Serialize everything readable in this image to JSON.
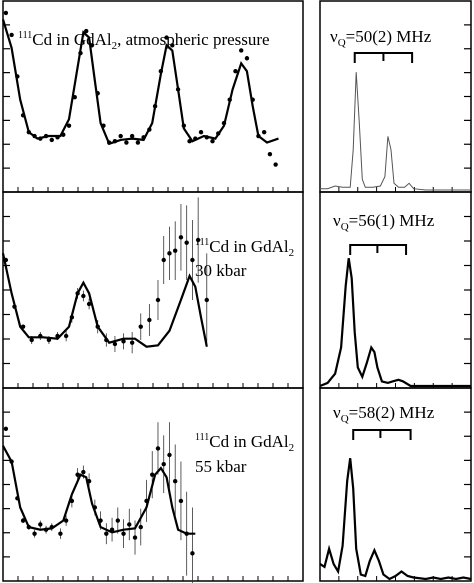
{
  "chart_data": [
    {
      "type": "scatter",
      "panel": "time-domain-1",
      "label": {
        "iso": "111",
        "pre": "Cd in GdAl",
        "sub": "2",
        "post": ", atmospheric pressure"
      },
      "ylim": [
        -0.35,
        1.0
      ],
      "xlim": [
        0,
        100
      ],
      "points": [
        {
          "x": 1,
          "y": 0.97
        },
        {
          "x": 3,
          "y": 0.8
        },
        {
          "x": 5,
          "y": 0.48
        },
        {
          "x": 7,
          "y": 0.18
        },
        {
          "x": 9,
          "y": 0.05
        },
        {
          "x": 11,
          "y": 0.02
        },
        {
          "x": 13,
          "y": 0.0
        },
        {
          "x": 15,
          "y": 0.02
        },
        {
          "x": 17,
          "y": -0.01
        },
        {
          "x": 19,
          "y": 0.01
        },
        {
          "x": 21,
          "y": 0.03
        },
        {
          "x": 23,
          "y": 0.1
        },
        {
          "x": 25,
          "y": 0.32
        },
        {
          "x": 27,
          "y": 0.66
        },
        {
          "x": 29,
          "y": 0.83
        },
        {
          "x": 31,
          "y": 0.72
        },
        {
          "x": 33,
          "y": 0.35
        },
        {
          "x": 35,
          "y": 0.1
        },
        {
          "x": 37,
          "y": -0.03
        },
        {
          "x": 39,
          "y": -0.02
        },
        {
          "x": 41,
          "y": 0.02
        },
        {
          "x": 43,
          "y": -0.03
        },
        {
          "x": 45,
          "y": 0.02
        },
        {
          "x": 47,
          "y": -0.03
        },
        {
          "x": 49,
          "y": 0.01
        },
        {
          "x": 51,
          "y": 0.07
        },
        {
          "x": 53,
          "y": 0.25
        },
        {
          "x": 55,
          "y": 0.52
        },
        {
          "x": 57,
          "y": 0.78
        },
        {
          "x": 59,
          "y": 0.72
        },
        {
          "x": 61,
          "y": 0.38
        },
        {
          "x": 63,
          "y": 0.1
        },
        {
          "x": 65,
          "y": -0.02
        },
        {
          "x": 67,
          "y": 0.0
        },
        {
          "x": 69,
          "y": 0.05
        },
        {
          "x": 71,
          "y": 0.01
        },
        {
          "x": 73,
          "y": -0.02
        },
        {
          "x": 75,
          "y": 0.04
        },
        {
          "x": 77,
          "y": 0.12
        },
        {
          "x": 79,
          "y": 0.3
        },
        {
          "x": 81,
          "y": 0.52
        },
        {
          "x": 83,
          "y": 0.68
        },
        {
          "x": 85,
          "y": 0.62
        },
        {
          "x": 87,
          "y": 0.3
        },
        {
          "x": 89,
          "y": 0.02
        },
        {
          "x": 91,
          "y": 0.05
        },
        {
          "x": 93,
          "y": -0.12
        },
        {
          "x": 95,
          "y": -0.2
        }
      ],
      "fit": [
        {
          "x": 0,
          "y": 0.92
        },
        {
          "x": 3,
          "y": 0.7
        },
        {
          "x": 6,
          "y": 0.3
        },
        {
          "x": 9,
          "y": 0.05
        },
        {
          "x": 12,
          "y": 0.0
        },
        {
          "x": 16,
          "y": 0.02
        },
        {
          "x": 20,
          "y": 0.02
        },
        {
          "x": 23,
          "y": 0.15
        },
        {
          "x": 26,
          "y": 0.55
        },
        {
          "x": 28,
          "y": 0.82
        },
        {
          "x": 30,
          "y": 0.78
        },
        {
          "x": 32,
          "y": 0.45
        },
        {
          "x": 34,
          "y": 0.12
        },
        {
          "x": 37,
          "y": -0.04
        },
        {
          "x": 41,
          "y": -0.01
        },
        {
          "x": 45,
          "y": 0.0
        },
        {
          "x": 49,
          "y": -0.01
        },
        {
          "x": 52,
          "y": 0.12
        },
        {
          "x": 55,
          "y": 0.5
        },
        {
          "x": 57,
          "y": 0.72
        },
        {
          "x": 59,
          "y": 0.68
        },
        {
          "x": 61,
          "y": 0.38
        },
        {
          "x": 63,
          "y": 0.08
        },
        {
          "x": 66,
          "y": -0.02
        },
        {
          "x": 70,
          "y": 0.02
        },
        {
          "x": 74,
          "y": 0.0
        },
        {
          "x": 77,
          "y": 0.1
        },
        {
          "x": 80,
          "y": 0.38
        },
        {
          "x": 83,
          "y": 0.58
        },
        {
          "x": 85,
          "y": 0.52
        },
        {
          "x": 87,
          "y": 0.25
        },
        {
          "x": 89,
          "y": 0.02
        },
        {
          "x": 92,
          "y": -0.03
        },
        {
          "x": 96,
          "y": 0.0
        }
      ]
    },
    {
      "type": "scatter",
      "panel": "time-domain-2",
      "label": {
        "iso": "111",
        "pre": "Cd in GdAl",
        "sub": "2",
        "line2": "30 kbar"
      },
      "ylim": [
        -0.35,
        1.0
      ],
      "xlim": [
        0,
        100
      ],
      "points": [
        {
          "x": 1,
          "y": 0.55,
          "e": 0
        },
        {
          "x": 4,
          "y": 0.2,
          "e": 0
        },
        {
          "x": 7,
          "y": 0.05,
          "e": 0
        },
        {
          "x": 10,
          "y": -0.05,
          "e": 0.03
        },
        {
          "x": 13,
          "y": -0.02,
          "e": 0.03
        },
        {
          "x": 16,
          "y": -0.05,
          "e": 0.03
        },
        {
          "x": 19,
          "y": -0.02,
          "e": 0.03
        },
        {
          "x": 22,
          "y": -0.02,
          "e": 0.04
        },
        {
          "x": 24,
          "y": 0.12,
          "e": 0.04
        },
        {
          "x": 26,
          "y": 0.3,
          "e": 0.04
        },
        {
          "x": 28,
          "y": 0.28,
          "e": 0.04
        },
        {
          "x": 30,
          "y": 0.22,
          "e": 0.04
        },
        {
          "x": 33,
          "y": 0.05,
          "e": 0.05
        },
        {
          "x": 36,
          "y": -0.05,
          "e": 0.05
        },
        {
          "x": 39,
          "y": -0.08,
          "e": 0.06
        },
        {
          "x": 42,
          "y": -0.06,
          "e": 0.06
        },
        {
          "x": 45,
          "y": -0.07,
          "e": 0.08
        },
        {
          "x": 48,
          "y": 0.05,
          "e": 0.1
        },
        {
          "x": 51,
          "y": 0.1,
          "e": 0.12
        },
        {
          "x": 54,
          "y": 0.25,
          "e": 0.15
        },
        {
          "x": 56,
          "y": 0.55,
          "e": 0.18
        },
        {
          "x": 58,
          "y": 0.6,
          "e": 0.2
        },
        {
          "x": 60,
          "y": 0.62,
          "e": 0.22
        },
        {
          "x": 62,
          "y": 0.72,
          "e": 0.25
        },
        {
          "x": 64,
          "y": 0.68,
          "e": 0.28
        },
        {
          "x": 66,
          "y": 0.55,
          "e": 0.3
        },
        {
          "x": 68,
          "y": 0.7,
          "e": 0.32
        },
        {
          "x": 71,
          "y": 0.25,
          "e": 0.35
        }
      ],
      "fit": [
        {
          "x": 0,
          "y": 0.6
        },
        {
          "x": 3,
          "y": 0.3
        },
        {
          "x": 6,
          "y": 0.05
        },
        {
          "x": 9,
          "y": -0.03
        },
        {
          "x": 14,
          "y": -0.03
        },
        {
          "x": 19,
          "y": -0.04
        },
        {
          "x": 23,
          "y": 0.05
        },
        {
          "x": 26,
          "y": 0.3
        },
        {
          "x": 28,
          "y": 0.38
        },
        {
          "x": 30,
          "y": 0.3
        },
        {
          "x": 33,
          "y": 0.05
        },
        {
          "x": 37,
          "y": -0.07
        },
        {
          "x": 42,
          "y": -0.04
        },
        {
          "x": 46,
          "y": -0.04
        },
        {
          "x": 50,
          "y": -0.1
        },
        {
          "x": 54,
          "y": -0.09
        },
        {
          "x": 58,
          "y": 0.02
        },
        {
          "x": 62,
          "y": 0.25
        },
        {
          "x": 65,
          "y": 0.43
        },
        {
          "x": 67,
          "y": 0.35
        },
        {
          "x": 69,
          "y": 0.12
        },
        {
          "x": 71,
          "y": -0.1
        }
      ]
    },
    {
      "type": "scatter",
      "panel": "time-domain-3",
      "label": {
        "iso": "111",
        "pre": "Cd in GdAl",
        "sub": "2",
        "line2": "55 kbar"
      },
      "ylim": [
        -0.35,
        1.0
      ],
      "xlim": [
        0,
        100
      ],
      "points": [
        {
          "x": 1,
          "y": 0.75,
          "e": 0
        },
        {
          "x": 3,
          "y": 0.5,
          "e": 0
        },
        {
          "x": 5,
          "y": 0.22,
          "e": 0
        },
        {
          "x": 7,
          "y": 0.05,
          "e": 0.02
        },
        {
          "x": 9,
          "y": 0.0,
          "e": 0.02
        },
        {
          "x": 11,
          "y": -0.05,
          "e": 0.03
        },
        {
          "x": 13,
          "y": 0.02,
          "e": 0.03
        },
        {
          "x": 15,
          "y": -0.02,
          "e": 0.03
        },
        {
          "x": 17,
          "y": 0.0,
          "e": 0.03
        },
        {
          "x": 20,
          "y": -0.05,
          "e": 0.04
        },
        {
          "x": 22,
          "y": 0.05,
          "e": 0.04
        },
        {
          "x": 24,
          "y": 0.2,
          "e": 0.05
        },
        {
          "x": 26,
          "y": 0.4,
          "e": 0.05
        },
        {
          "x": 28,
          "y": 0.42,
          "e": 0.05
        },
        {
          "x": 30,
          "y": 0.35,
          "e": 0.06
        },
        {
          "x": 32,
          "y": 0.15,
          "e": 0.06
        },
        {
          "x": 34,
          "y": 0.05,
          "e": 0.07
        },
        {
          "x": 36,
          "y": -0.05,
          "e": 0.08
        },
        {
          "x": 38,
          "y": -0.02,
          "e": 0.09
        },
        {
          "x": 40,
          "y": 0.05,
          "e": 0.1
        },
        {
          "x": 42,
          "y": -0.05,
          "e": 0.11
        },
        {
          "x": 44,
          "y": 0.02,
          "e": 0.12
        },
        {
          "x": 46,
          "y": -0.08,
          "e": 0.13
        },
        {
          "x": 48,
          "y": 0.0,
          "e": 0.14
        },
        {
          "x": 50,
          "y": 0.2,
          "e": 0.16
        },
        {
          "x": 52,
          "y": 0.4,
          "e": 0.18
        },
        {
          "x": 54,
          "y": 0.6,
          "e": 0.2
        },
        {
          "x": 56,
          "y": 0.48,
          "e": 0.22
        },
        {
          "x": 58,
          "y": 0.55,
          "e": 0.25
        },
        {
          "x": 60,
          "y": 0.35,
          "e": 0.28
        },
        {
          "x": 62,
          "y": 0.2,
          "e": 0.3
        },
        {
          "x": 64,
          "y": -0.05,
          "e": 0.32
        },
        {
          "x": 66,
          "y": -0.2,
          "e": 0.35
        }
      ],
      "fit": [
        {
          "x": 0,
          "y": 0.62
        },
        {
          "x": 3,
          "y": 0.5
        },
        {
          "x": 6,
          "y": 0.15
        },
        {
          "x": 9,
          "y": 0.0
        },
        {
          "x": 13,
          "y": -0.02
        },
        {
          "x": 17,
          "y": -0.01
        },
        {
          "x": 21,
          "y": 0.05
        },
        {
          "x": 24,
          "y": 0.25
        },
        {
          "x": 27,
          "y": 0.4
        },
        {
          "x": 29,
          "y": 0.38
        },
        {
          "x": 31,
          "y": 0.18
        },
        {
          "x": 34,
          "y": 0.0
        },
        {
          "x": 38,
          "y": -0.04
        },
        {
          "x": 42,
          "y": -0.02
        },
        {
          "x": 46,
          "y": -0.01
        },
        {
          "x": 50,
          "y": 0.15
        },
        {
          "x": 53,
          "y": 0.4
        },
        {
          "x": 55,
          "y": 0.45
        },
        {
          "x": 57,
          "y": 0.38
        },
        {
          "x": 59,
          "y": 0.15
        },
        {
          "x": 61,
          "y": -0.02
        },
        {
          "x": 64,
          "y": -0.05
        },
        {
          "x": 67,
          "y": -0.05
        }
      ]
    },
    {
      "type": "line",
      "panel": "frequency-domain-1",
      "label": {
        "nu": "ν",
        "sub": "Q",
        "post": "=50(2) MHz"
      },
      "ylim": [
        0,
        1.0
      ],
      "xlim": [
        0,
        100
      ],
      "style": "thin",
      "spectrum": [
        {
          "x": 0,
          "y": 0.01
        },
        {
          "x": 5,
          "y": 0.01
        },
        {
          "x": 10,
          "y": 0.03
        },
        {
          "x": 15,
          "y": 0.02
        },
        {
          "x": 20,
          "y": 0.02
        },
        {
          "x": 22,
          "y": 0.3
        },
        {
          "x": 24,
          "y": 0.88
        },
        {
          "x": 26,
          "y": 0.5
        },
        {
          "x": 28,
          "y": 0.08
        },
        {
          "x": 30,
          "y": 0.02
        },
        {
          "x": 35,
          "y": 0.02
        },
        {
          "x": 40,
          "y": 0.03
        },
        {
          "x": 43,
          "y": 0.1
        },
        {
          "x": 45,
          "y": 0.4
        },
        {
          "x": 47,
          "y": 0.3
        },
        {
          "x": 49,
          "y": 0.05
        },
        {
          "x": 52,
          "y": 0.02
        },
        {
          "x": 56,
          "y": 0.02
        },
        {
          "x": 59,
          "y": 0.05
        },
        {
          "x": 62,
          "y": 0.01
        },
        {
          "x": 70,
          "y": 0.0
        },
        {
          "x": 80,
          "y": 0.0
        },
        {
          "x": 90,
          "y": 0.0
        },
        {
          "x": 100,
          "y": 0.0
        }
      ],
      "bracket": {
        "x0": 23,
        "x1": 61,
        "ticks": [
          42
        ]
      }
    },
    {
      "type": "line",
      "panel": "frequency-domain-2",
      "label": {
        "nu": "ν",
        "sub": "Q",
        "post": "=56(1) MHz"
      },
      "ylim": [
        0,
        1.0
      ],
      "xlim": [
        0,
        100
      ],
      "style": "thick",
      "spectrum": [
        {
          "x": 0,
          "y": 0.0
        },
        {
          "x": 5,
          "y": 0.02
        },
        {
          "x": 10,
          "y": 0.08
        },
        {
          "x": 14,
          "y": 0.25
        },
        {
          "x": 17,
          "y": 0.65
        },
        {
          "x": 19,
          "y": 0.83
        },
        {
          "x": 21,
          "y": 0.7
        },
        {
          "x": 23,
          "y": 0.35
        },
        {
          "x": 25,
          "y": 0.12
        },
        {
          "x": 28,
          "y": 0.06
        },
        {
          "x": 31,
          "y": 0.15
        },
        {
          "x": 34,
          "y": 0.25
        },
        {
          "x": 36,
          "y": 0.22
        },
        {
          "x": 38,
          "y": 0.12
        },
        {
          "x": 41,
          "y": 0.03
        },
        {
          "x": 45,
          "y": 0.02
        },
        {
          "x": 48,
          "y": 0.03
        },
        {
          "x": 52,
          "y": 0.04
        },
        {
          "x": 55,
          "y": 0.03
        },
        {
          "x": 60,
          "y": 0.0
        },
        {
          "x": 70,
          "y": 0.0
        },
        {
          "x": 80,
          "y": 0.0
        },
        {
          "x": 90,
          "y": 0.0
        },
        {
          "x": 100,
          "y": 0.0
        }
      ],
      "bracket": {
        "x0": 20,
        "x1": 57,
        "ticks": [
          38
        ]
      }
    },
    {
      "type": "line",
      "panel": "frequency-domain-3",
      "label": {
        "nu": "ν",
        "sub": "Q",
        "post": "=58(2) MHz"
      },
      "ylim": [
        0,
        1.0
      ],
      "xlim": [
        0,
        100
      ],
      "style": "thick",
      "spectrum": [
        {
          "x": 0,
          "y": 0.1
        },
        {
          "x": 3,
          "y": 0.08
        },
        {
          "x": 6,
          "y": 0.2
        },
        {
          "x": 9,
          "y": 0.1
        },
        {
          "x": 12,
          "y": 0.05
        },
        {
          "x": 15,
          "y": 0.22
        },
        {
          "x": 18,
          "y": 0.65
        },
        {
          "x": 20,
          "y": 0.8
        },
        {
          "x": 22,
          "y": 0.6
        },
        {
          "x": 24,
          "y": 0.2
        },
        {
          "x": 27,
          "y": 0.03
        },
        {
          "x": 30,
          "y": 0.02
        },
        {
          "x": 33,
          "y": 0.12
        },
        {
          "x": 36,
          "y": 0.19
        },
        {
          "x": 39,
          "y": 0.12
        },
        {
          "x": 42,
          "y": 0.03
        },
        {
          "x": 46,
          "y": 0.0
        },
        {
          "x": 50,
          "y": 0.02
        },
        {
          "x": 54,
          "y": 0.05
        },
        {
          "x": 58,
          "y": 0.02
        },
        {
          "x": 62,
          "y": 0.01
        },
        {
          "x": 70,
          "y": 0.0
        },
        {
          "x": 75,
          "y": 0.01
        },
        {
          "x": 80,
          "y": 0.0
        },
        {
          "x": 85,
          "y": 0.01
        },
        {
          "x": 90,
          "y": 0.0
        },
        {
          "x": 95,
          "y": 0.01
        },
        {
          "x": 100,
          "y": 0.0
        }
      ],
      "bracket": {
        "x0": 22,
        "x1": 60,
        "ticks": [
          40
        ]
      }
    }
  ]
}
